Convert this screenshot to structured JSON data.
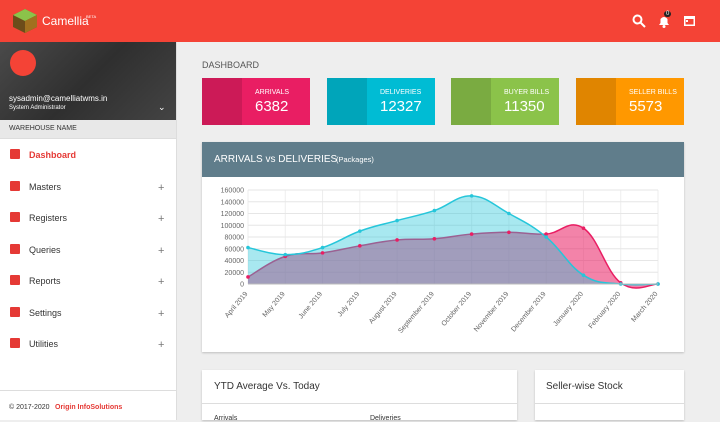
{
  "header": {
    "brand": "Camellia",
    "badge": "BETA",
    "notifications": "0"
  },
  "user": {
    "email": "sysadmin@camelliatwms.in",
    "role": "System Administrator"
  },
  "warehouse": "WAREHOUSE NAME",
  "menu": [
    "Dashboard",
    "Masters",
    "Registers",
    "Queries",
    "Reports",
    "Settings",
    "Utilities"
  ],
  "footer": {
    "copyright": "© 2017-2020",
    "company": "Origin InfoSolutions"
  },
  "page_title": "DASHBOARD",
  "cards": [
    {
      "label": "ARRIVALS",
      "value": 6382,
      "color": "#e91e63"
    },
    {
      "label": "DELIVERIES",
      "value": 12327,
      "color": "#00bcd4"
    },
    {
      "label": "BUYER BILLS",
      "value": 11350,
      "color": "#8bc34a"
    },
    {
      "label": "SELLER BILLS",
      "value": 5573,
      "color": "#ff9800"
    }
  ],
  "chart_data": {
    "type": "area",
    "title": "ARRIVALS vs DELIVERIES",
    "subtitle": "(Packages)",
    "categories": [
      "April 2019",
      "May 2019",
      "June 2019",
      "July 2019",
      "August 2019",
      "September 2019",
      "October 2019",
      "November 2019",
      "December 2019",
      "January 2020",
      "February 2020",
      "March 2020"
    ],
    "series": [
      {
        "color": "#e91e63",
        "values": [
          12000,
          47000,
          53000,
          65000,
          75000,
          77000,
          85000,
          88000,
          85000,
          95000,
          2000,
          0
        ]
      },
      {
        "color": "#26c6da",
        "values": [
          62000,
          50000,
          62000,
          90000,
          108000,
          125000,
          150000,
          120000,
          80000,
          15000,
          0,
          0
        ]
      }
    ],
    "ylim": [
      0,
      160000
    ],
    "yticks": [
      0,
      20000,
      40000,
      60000,
      80000,
      100000,
      120000,
      140000,
      160000
    ],
    "grid": true
  },
  "panels": [
    {
      "title": "YTD Average Vs. Today",
      "columns": [
        "Arrivals",
        "Deliveries"
      ]
    },
    {
      "title": "Seller-wise Stock"
    }
  ]
}
